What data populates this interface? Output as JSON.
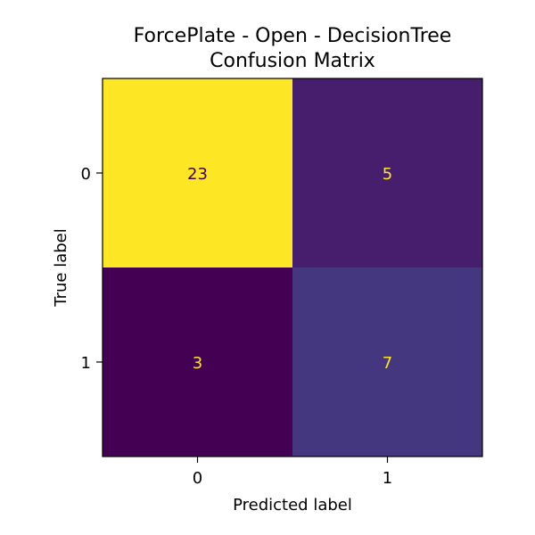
{
  "chart_data": {
    "type": "heatmap",
    "title_lines": [
      "ForcePlate - Open - DecisionTree",
      "Confusion Matrix"
    ],
    "xlabel": "Predicted label",
    "ylabel": "True label",
    "x_categories": [
      "0",
      "1"
    ],
    "y_categories": [
      "0",
      "1"
    ],
    "values": [
      [
        23,
        5
      ],
      [
        3,
        7
      ]
    ],
    "colormap": "viridis",
    "vmin": 3,
    "vmax": 23,
    "cell_text_colors": {
      "on_dark": "#fde725",
      "on_light": "#440154"
    }
  }
}
